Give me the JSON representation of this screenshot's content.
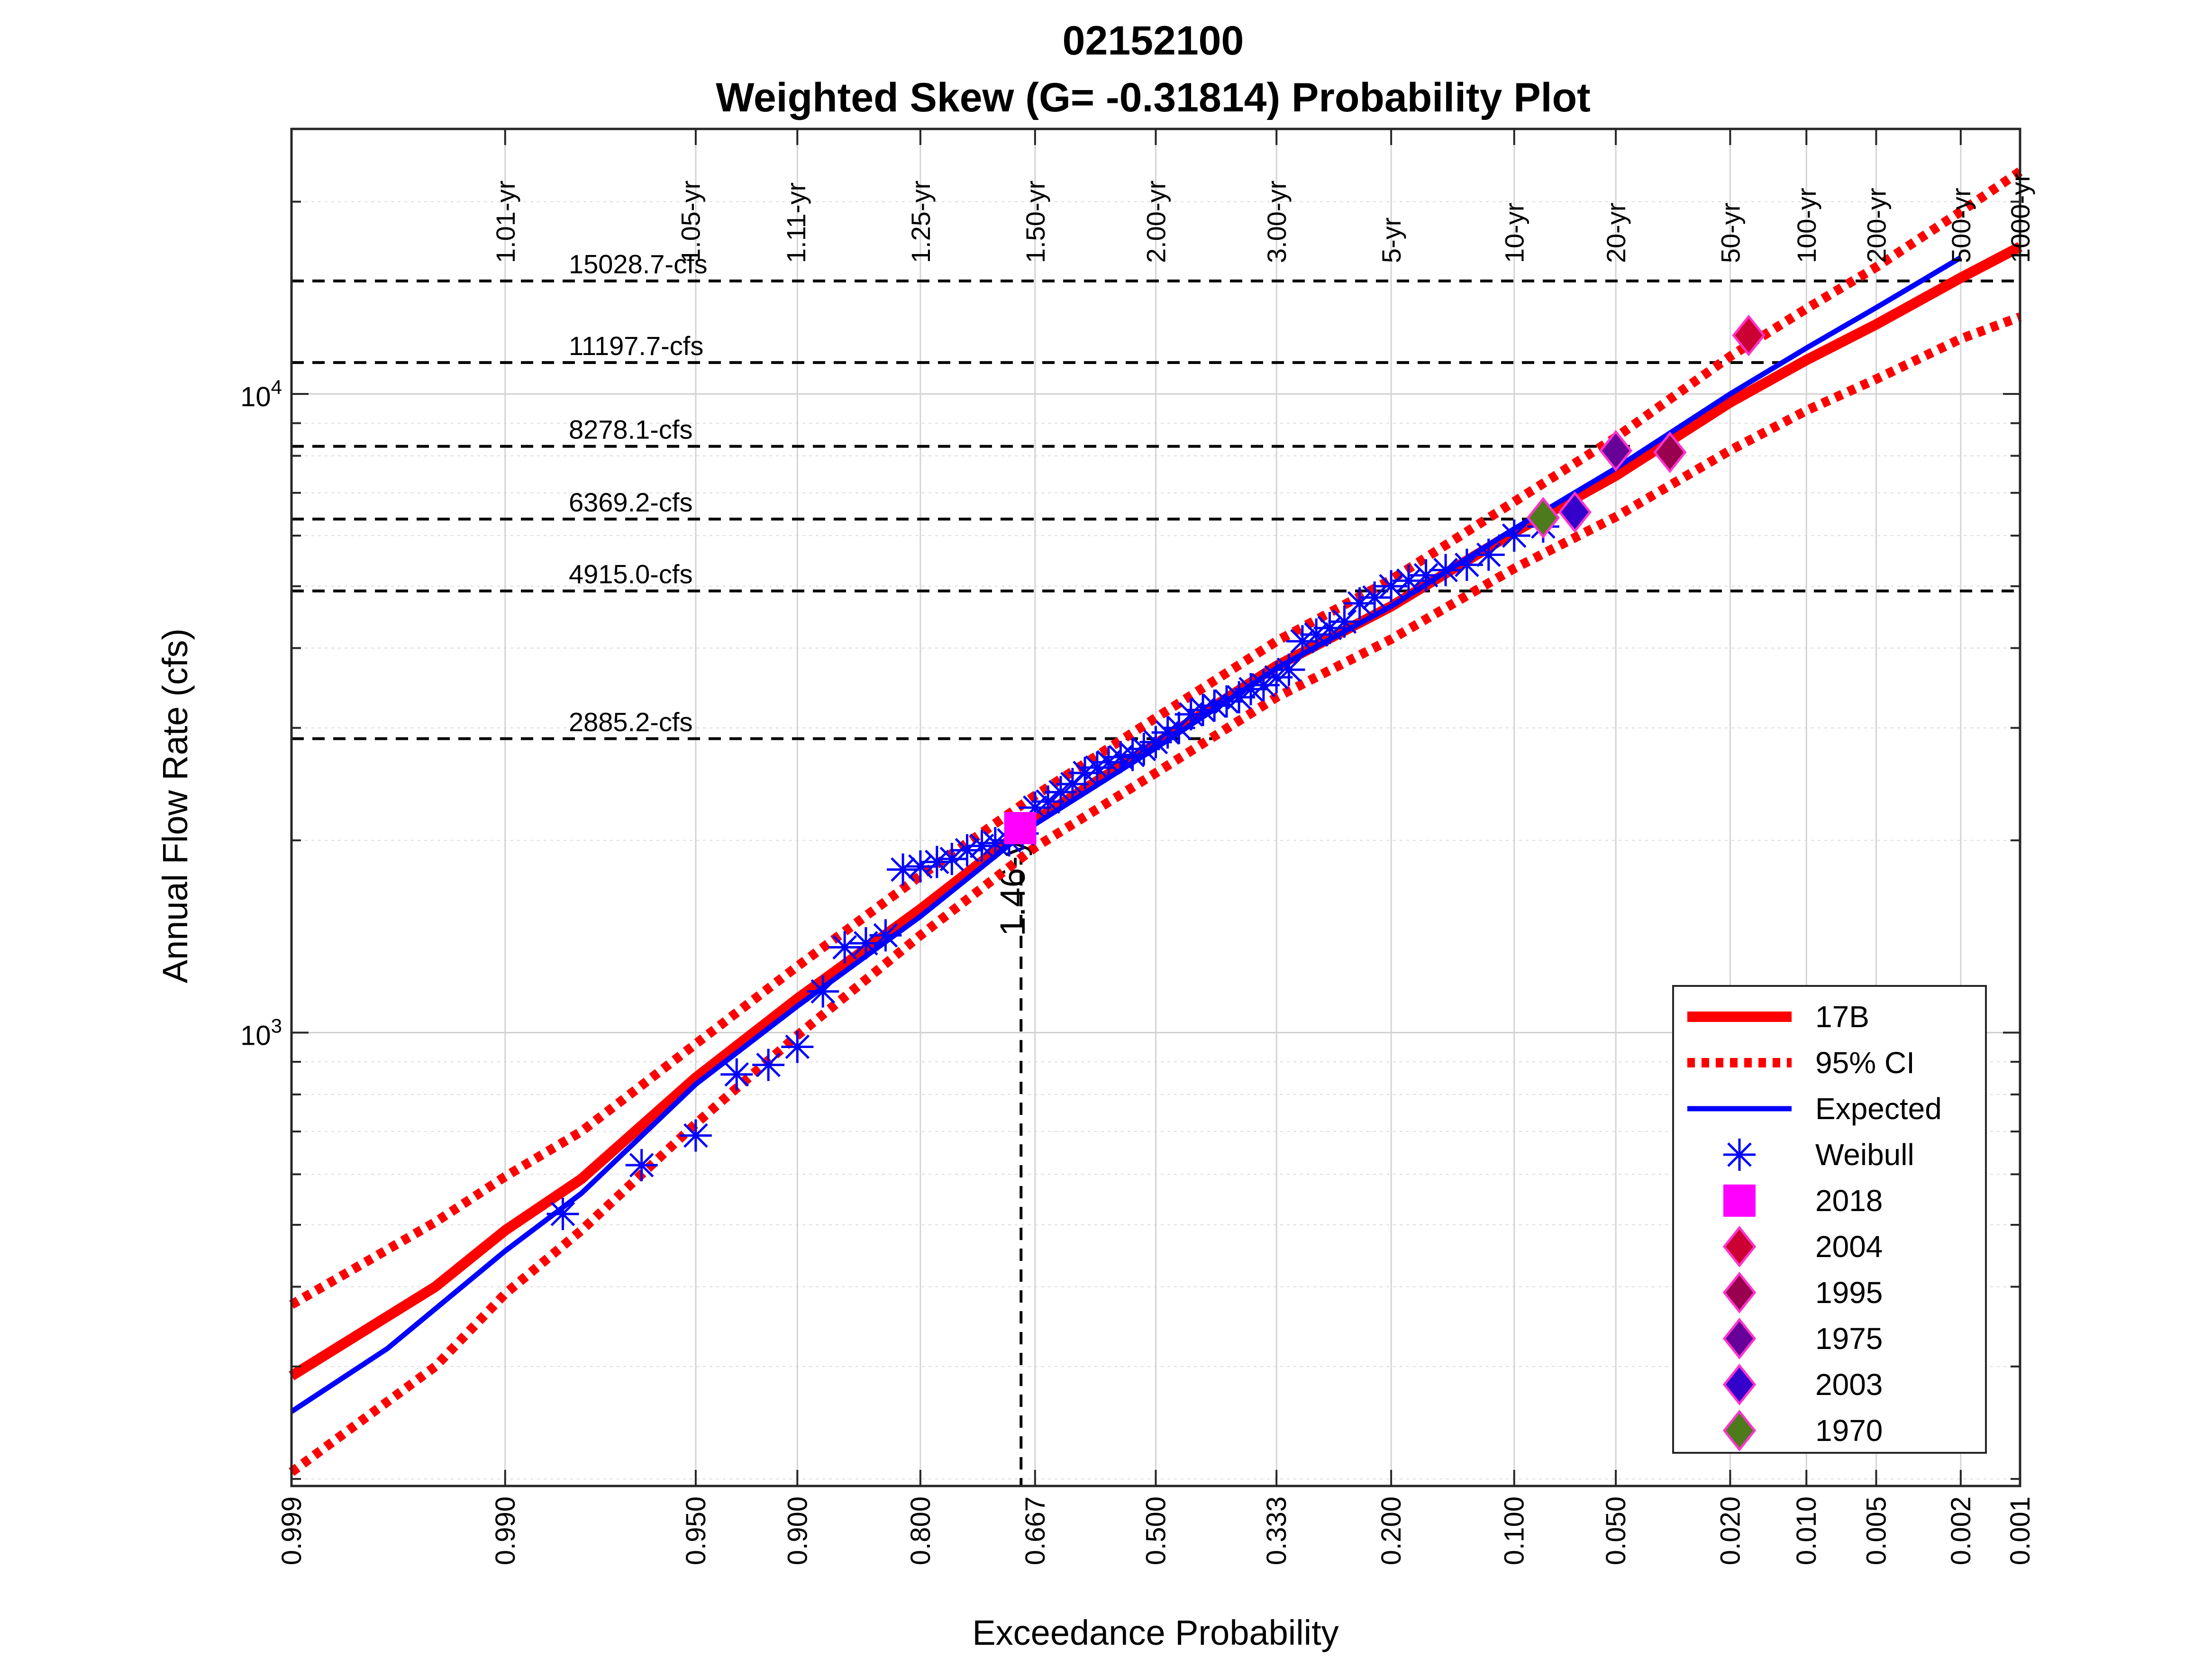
{
  "chart_data": {
    "type": "scatter",
    "title": "02152100",
    "subtitle": "Weighted Skew (G= -0.31814) Probability Plot",
    "xlabel": "Exceedance Probability",
    "ylabel": "Annual Flow Rate (cfs)",
    "x_scale": "normal probability (descending)",
    "y_scale": "log",
    "xlim": [
      0.999,
      0.001
    ],
    "ylim": [
      195,
      26000
    ],
    "grid": true,
    "x_ticks": [
      "0.999",
      "0.990",
      "0.950",
      "0.900",
      "0.800",
      "0.667",
      "0.500",
      "0.333",
      "0.200",
      "0.100",
      "0.050",
      "0.020",
      "0.010",
      "0.005",
      "0.002",
      "0.001"
    ],
    "y_major_ticks": [
      {
        "value": 1000,
        "base": "10",
        "exp": "3"
      },
      {
        "value": 10000,
        "base": "10",
        "exp": "4"
      }
    ],
    "return_periods": [
      {
        "p": 0.99,
        "label": "1.01-yr"
      },
      {
        "p": 0.952,
        "label": "1.05-yr"
      },
      {
        "p": 0.901,
        "label": "1.11-yr"
      },
      {
        "p": 0.8,
        "label": "1.25-yr"
      },
      {
        "p": 0.667,
        "label": "1.50-yr"
      },
      {
        "p": 0.5,
        "label": "2.00-yr"
      },
      {
        "p": 0.333,
        "label": "3.00-yr"
      },
      {
        "p": 0.2,
        "label": "5-yr"
      },
      {
        "p": 0.1,
        "label": "10-yr"
      },
      {
        "p": 0.05,
        "label": "20-yr"
      },
      {
        "p": 0.02,
        "label": "50-yr"
      },
      {
        "p": 0.01,
        "label": "100-yr"
      },
      {
        "p": 0.005,
        "label": "200-yr"
      },
      {
        "p": 0.002,
        "label": "500-yr"
      },
      {
        "p": 0.001,
        "label": "1000-yr"
      }
    ],
    "flow_lines": [
      {
        "value": 15028.7,
        "label": "15028.7-cfs",
        "end_p": 0.001
      },
      {
        "value": 11197.7,
        "label": "11197.7-cfs",
        "end_p": 0.012
      },
      {
        "value": 8278.1,
        "label": "8278.1-cfs",
        "end_p": 0.045
      },
      {
        "value": 6369.2,
        "label": "6369.2-cfs",
        "end_p": 0.09
      },
      {
        "value": 4915.0,
        "label": "4915.0-cfs",
        "end_p": 0.001
      },
      {
        "value": 2885.2,
        "label": "2885.2-cfs",
        "end_p": 0.42
      }
    ],
    "marker_line": {
      "p": 0.685,
      "value": 2065,
      "label": "1.46-yr"
    },
    "series": [
      {
        "name": "17B",
        "style": "solid-thick",
        "color": "#ff0000",
        "x": [
          0.999,
          0.995,
          0.99,
          0.98,
          0.95,
          0.9,
          0.8,
          0.667,
          0.5,
          0.333,
          0.2,
          0.1,
          0.05,
          0.02,
          0.01,
          0.005,
          0.002,
          0.001
        ],
        "y": [
          290,
          400,
          490,
          590,
          850,
          1130,
          1560,
          2150,
          2830,
          3750,
          4650,
          6080,
          7450,
          9700,
          11300,
          12850,
          15200,
          17000
        ]
      },
      {
        "name": "95% CI",
        "style": "dotted",
        "color": "#ff0000",
        "x": [
          0.999,
          0.995,
          0.99,
          0.98,
          0.95,
          0.9,
          0.8,
          0.667,
          0.5,
          0.333,
          0.2,
          0.1,
          0.05,
          0.02,
          0.01,
          0.005,
          0.002,
          0.001
        ],
        "y": [
          375,
          505,
          595,
          700,
          960,
          1270,
          1760,
          2350,
          3110,
          4100,
          5120,
          6780,
          8550,
          11450,
          13600,
          15800,
          19300,
          22300
        ]
      },
      {
        "name": "",
        "style": "dotted",
        "color": "#ff0000",
        "x": [
          0.999,
          0.995,
          0.99,
          0.98,
          0.95,
          0.9,
          0.8,
          0.667,
          0.5,
          0.333,
          0.2,
          0.1,
          0.05,
          0.02,
          0.01,
          0.005,
          0.002,
          0.001
        ],
        "y": [
          205,
          300,
          390,
          490,
          720,
          990,
          1420,
          1950,
          2550,
          3350,
          4130,
          5330,
          6420,
          8160,
          9420,
          10550,
          12200,
          13200
        ]
      },
      {
        "name": "Expected",
        "style": "solid",
        "color": "#0000ff",
        "x": [
          0.999,
          0.997,
          0.99,
          0.98,
          0.95,
          0.9,
          0.8,
          0.667,
          0.5,
          0.333,
          0.2,
          0.1,
          0.05,
          0.02,
          0.01,
          0.005,
          0.002
        ],
        "y": [
          255,
          320,
          455,
          560,
          830,
          1100,
          1520,
          2120,
          2790,
          3720,
          4650,
          6150,
          7650,
          10000,
          11800,
          13650,
          16350
        ]
      }
    ],
    "weibull": {
      "name": "Weibull",
      "color": "#0000ff",
      "x": [
        0.983,
        0.967,
        0.95,
        0.933,
        0.917,
        0.9,
        0.883,
        0.867,
        0.85,
        0.833,
        0.817,
        0.8,
        0.783,
        0.767,
        0.75,
        0.733,
        0.717,
        0.7,
        0.683,
        0.667,
        0.65,
        0.633,
        0.617,
        0.6,
        0.583,
        0.567,
        0.55,
        0.533,
        0.517,
        0.5,
        0.483,
        0.467,
        0.45,
        0.433,
        0.417,
        0.4,
        0.383,
        0.367,
        0.35,
        0.333,
        0.317,
        0.3,
        0.283,
        0.267,
        0.25,
        0.233,
        0.217,
        0.2,
        0.183,
        0.167,
        0.15,
        0.133,
        0.117,
        0.1,
        0.083
      ],
      "y": [
        520,
        620,
        690,
        860,
        890,
        950,
        1160,
        1360,
        1380,
        1420,
        1800,
        1820,
        1850,
        1870,
        1930,
        1960,
        1980,
        2000,
        2050,
        2250,
        2300,
        2380,
        2450,
        2550,
        2600,
        2650,
        2700,
        2720,
        2780,
        2850,
        2950,
        3000,
        3150,
        3200,
        3250,
        3300,
        3350,
        3450,
        3500,
        3600,
        3700,
        4100,
        4200,
        4300,
        4400,
        4700,
        4800,
        5000,
        5100,
        5200,
        5300,
        5400,
        5600,
        6000,
        6200
      ]
    },
    "highlights": [
      {
        "name": "2018",
        "marker": "square",
        "color": "#ff00ff",
        "p": 0.686,
        "value": 2090
      },
      {
        "name": "2004",
        "marker": "diamond",
        "color": "#cc0033",
        "p": 0.017,
        "value": 12350
      },
      {
        "name": "1995",
        "marker": "diamond",
        "color": "#99004d",
        "p": 0.033,
        "value": 8100
      },
      {
        "name": "1975",
        "marker": "diamond",
        "color": "#660099",
        "p": 0.05,
        "value": 8150
      },
      {
        "name": "2003",
        "marker": "diamond",
        "color": "#3300cc",
        "p": 0.067,
        "value": 6530
      },
      {
        "name": "1970",
        "marker": "diamond",
        "color": "#4d7a1a",
        "p": 0.083,
        "value": 6400
      }
    ],
    "legend": {
      "placement": "bottom-right",
      "entries": [
        {
          "label": "17B",
          "kind": "line-thick",
          "color": "#ff0000"
        },
        {
          "label": "95% CI",
          "kind": "line-dotted",
          "color": "#ff0000"
        },
        {
          "label": "Expected",
          "kind": "line",
          "color": "#0000ff"
        },
        {
          "label": "Weibull",
          "kind": "star",
          "color": "#0000ff"
        },
        {
          "label": "2018",
          "kind": "square",
          "color": "#ff00ff"
        },
        {
          "label": "2004",
          "kind": "diamond",
          "color": "#cc0033"
        },
        {
          "label": "1995",
          "kind": "diamond",
          "color": "#99004d"
        },
        {
          "label": "1975",
          "kind": "diamond",
          "color": "#660099"
        },
        {
          "label": "2003",
          "kind": "diamond",
          "color": "#3300cc"
        },
        {
          "label": "1970",
          "kind": "diamond",
          "color": "#4d7a1a"
        }
      ]
    }
  }
}
